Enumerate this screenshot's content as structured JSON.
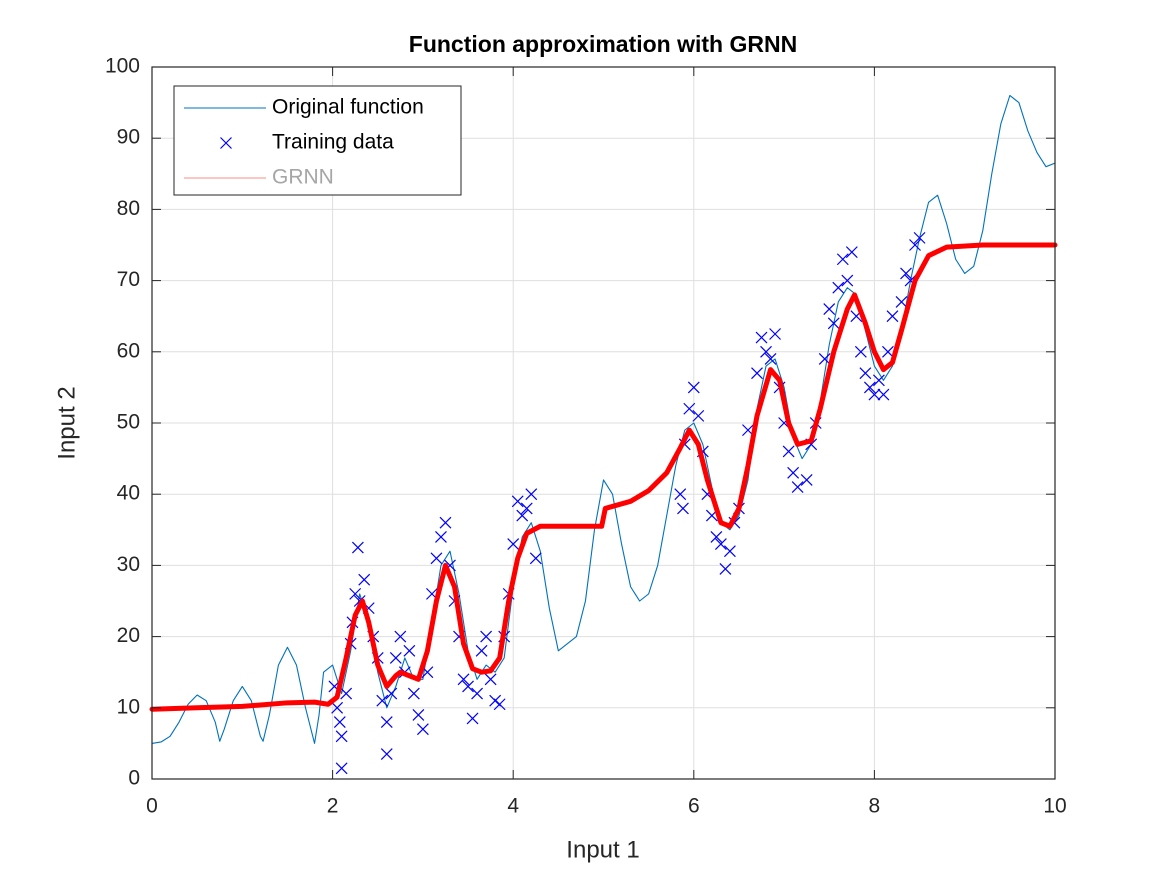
{
  "chart_data": {
    "type": "line",
    "title": "Function approximation with GRNN",
    "x_label": "Input 1",
    "y_label": "Input 2",
    "xlim": [
      0,
      10
    ],
    "ylim": [
      0,
      100
    ],
    "xticks": [
      0,
      2,
      4,
      6,
      8,
      10
    ],
    "yticks": [
      0,
      10,
      20,
      30,
      40,
      50,
      60,
      70,
      80,
      90,
      100
    ],
    "grid": true,
    "legend": "northwest",
    "series": [
      {
        "name": "Original function",
        "color": "#0072bd",
        "style": "line",
        "x": [
          0,
          0.1,
          0.2,
          0.3,
          0.4,
          0.5,
          0.6,
          0.7,
          0.75,
          0.8,
          0.9,
          1.0,
          1.1,
          1.2,
          1.23,
          1.3,
          1.4,
          1.5,
          1.6,
          1.7,
          1.8,
          1.85,
          1.9,
          2.0,
          2.1,
          2.2,
          2.3,
          2.4,
          2.5,
          2.6,
          2.7,
          2.8,
          2.9,
          3.0,
          3.1,
          3.2,
          3.3,
          3.4,
          3.5,
          3.6,
          3.7,
          3.8,
          3.9,
          4.0,
          4.1,
          4.2,
          4.3,
          4.4,
          4.5,
          4.6,
          4.7,
          4.8,
          4.9,
          5.0,
          5.1,
          5.2,
          5.3,
          5.4,
          5.5,
          5.6,
          5.7,
          5.8,
          5.9,
          6.0,
          6.1,
          6.2,
          6.3,
          6.4,
          6.5,
          6.6,
          6.7,
          6.8,
          6.9,
          7.0,
          7.1,
          7.2,
          7.3,
          7.4,
          7.5,
          7.6,
          7.7,
          7.8,
          7.9,
          8.0,
          8.1,
          8.2,
          8.3,
          8.4,
          8.5,
          8.6,
          8.7,
          8.8,
          8.9,
          9.0,
          9.1,
          9.2,
          9.3,
          9.4,
          9.5,
          9.6,
          9.7,
          9.8,
          9.9,
          10
        ],
        "values": [
          5,
          5.2,
          6,
          8,
          10.5,
          11.8,
          11,
          8,
          5.3,
          7,
          11,
          13,
          11,
          6,
          5.3,
          9,
          16,
          18.5,
          16,
          10,
          5,
          9,
          15,
          16,
          12,
          18,
          26,
          22,
          15,
          10,
          13,
          17,
          14,
          14,
          22,
          30,
          32,
          26,
          18,
          14,
          16,
          15,
          17,
          27,
          34,
          36,
          32,
          24,
          18,
          19,
          20,
          25,
          35,
          42,
          40,
          33,
          27,
          25,
          26,
          30,
          37,
          44,
          49,
          50,
          47,
          41,
          36,
          35,
          37,
          42,
          52,
          58,
          59,
          55,
          48,
          45,
          47,
          53,
          61,
          67,
          69,
          68,
          63,
          58,
          56,
          58,
          63,
          70,
          76,
          81,
          82,
          78,
          73,
          71,
          72,
          77,
          85,
          92,
          96,
          95,
          91,
          88,
          86,
          86.5
        ]
      },
      {
        "name": "Training data",
        "color": "#0000ff",
        "style": "marker",
        "x": [
          2.02,
          2.05,
          2.08,
          2.1,
          2.1,
          2.15,
          2.2,
          2.22,
          2.25,
          2.28,
          2.3,
          2.35,
          2.4,
          2.45,
          2.5,
          2.55,
          2.6,
          2.6,
          2.65,
          2.7,
          2.75,
          2.8,
          2.85,
          2.9,
          2.95,
          3.0,
          3.05,
          3.1,
          3.15,
          3.2,
          3.25,
          3.3,
          3.35,
          3.4,
          3.45,
          3.5,
          3.55,
          3.6,
          3.65,
          3.7,
          3.75,
          3.8,
          3.85,
          3.9,
          3.95,
          4.0,
          4.05,
          4.1,
          4.15,
          4.2,
          4.25,
          5.85,
          5.88,
          5.9,
          5.95,
          6.0,
          6.05,
          6.1,
          6.15,
          6.2,
          6.25,
          6.3,
          6.35,
          6.4,
          6.45,
          6.5,
          6.6,
          6.7,
          6.75,
          6.8,
          6.85,
          6.9,
          6.95,
          7.0,
          7.05,
          7.1,
          7.15,
          7.25,
          7.3,
          7.35,
          7.45,
          7.5,
          7.55,
          7.6,
          7.65,
          7.7,
          7.75,
          7.8,
          7.85,
          7.9,
          7.95,
          8.0,
          8.05,
          8.1,
          8.15,
          8.2,
          8.3,
          8.35,
          8.4,
          8.45,
          8.5
        ],
        "values": [
          13,
          10,
          8,
          1.5,
          6,
          12,
          19,
          22,
          26,
          32.5,
          25,
          28,
          24,
          20,
          17,
          11,
          8,
          3.5,
          12,
          17,
          20,
          15,
          18,
          12,
          9,
          7,
          15,
          26,
          31,
          34,
          36,
          30,
          25,
          20,
          14,
          13,
          8.5,
          12,
          18,
          20,
          14,
          11,
          10.5,
          20,
          26,
          33,
          39,
          37,
          38,
          40,
          31,
          40,
          38,
          47,
          52,
          55,
          51,
          46,
          40,
          37,
          34,
          33,
          29.5,
          32,
          36,
          38,
          49,
          57,
          62,
          60,
          59,
          62.5,
          55,
          50,
          46,
          43,
          41,
          42,
          47,
          50,
          59,
          66,
          64,
          69,
          73,
          70,
          74,
          65,
          60,
          57,
          55,
          54,
          56,
          54,
          60,
          65,
          67,
          71,
          70,
          75,
          76
        ]
      },
      {
        "name": "GRNN",
        "color": "#ff0000",
        "style": "thick",
        "x": [
          0,
          0.5,
          1,
          1.5,
          1.8,
          1.95,
          2.05,
          2.15,
          2.25,
          2.33,
          2.4,
          2.5,
          2.6,
          2.7,
          2.75,
          2.85,
          2.95,
          3.05,
          3.15,
          3.25,
          3.35,
          3.45,
          3.55,
          3.65,
          3.75,
          3.85,
          3.95,
          4.05,
          4.15,
          4.3,
          4.6,
          4.98,
          5.02,
          5.3,
          5.5,
          5.7,
          5.85,
          5.95,
          6.05,
          6.15,
          6.3,
          6.4,
          6.5,
          6.6,
          6.7,
          6.85,
          6.95,
          7.05,
          7.15,
          7.3,
          7.4,
          7.55,
          7.7,
          7.78,
          7.9,
          8.0,
          8.1,
          8.2,
          8.3,
          8.45,
          8.6,
          8.8,
          9.2,
          10
        ],
        "values": [
          9.8,
          10,
          10.2,
          10.7,
          10.8,
          10.5,
          11.5,
          17,
          23,
          25,
          22,
          16,
          13,
          14.5,
          15,
          14.5,
          14,
          18,
          25,
          30,
          27,
          19,
          15.5,
          15,
          15.2,
          17,
          25,
          31,
          34.5,
          35.5,
          35.5,
          35.5,
          38,
          39,
          40.5,
          43,
          46.5,
          49,
          47,
          42,
          36,
          35.5,
          38,
          44,
          51,
          57.5,
          56,
          50,
          47,
          47.5,
          52,
          60,
          66,
          68,
          64,
          60,
          57.5,
          58.5,
          63,
          70,
          73.5,
          74.7,
          75,
          75
        ]
      }
    ]
  }
}
